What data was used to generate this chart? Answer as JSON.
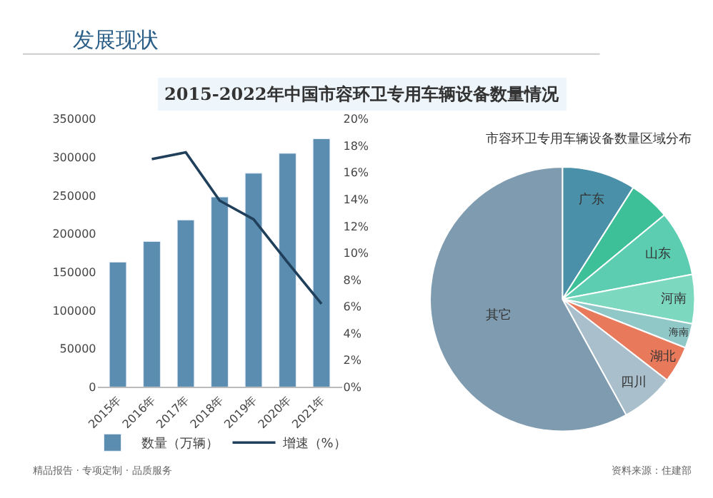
{
  "chart_data": [
    {
      "type": "bar",
      "title": "2015-2022年中国市容环卫专用车辆设备数量情况",
      "annotations": [
        "发展现状",
        "精品报告 · 专项定制 · 品质服务",
        "资料来源：住建部"
      ],
      "categories": [
        "2015年",
        "2016年",
        "2017年",
        "2018年",
        "2019年",
        "2020年",
        "2021年"
      ],
      "series": [
        {
          "name": "数量（万辆）",
          "type": "bar",
          "color": "#5b8db0",
          "values": [
            163000,
            190000,
            218000,
            248000,
            279000,
            305000,
            324000
          ]
        },
        {
          "name": "增速（%）",
          "type": "line",
          "axis": "y2",
          "color": "#1f3f5a",
          "values": [
            null,
            17.0,
            17.5,
            13.9,
            12.5,
            9.3,
            6.2
          ]
        }
      ],
      "ylim": [
        0,
        350000
      ],
      "yticks": [
        0,
        50000,
        100000,
        150000,
        200000,
        250000,
        300000,
        350000
      ],
      "y2lim": [
        0,
        20
      ],
      "y2ticks": [
        {
          "value": 0,
          "label": "0%"
        },
        {
          "value": 2,
          "label": "2%"
        },
        {
          "value": 4,
          "label": "4%"
        },
        {
          "value": 6,
          "label": "6%"
        },
        {
          "value": 8,
          "label": "8%"
        },
        {
          "value": 10,
          "label": "10%"
        },
        {
          "value": 12,
          "label": "12%"
        },
        {
          "value": 14,
          "label": "14%"
        },
        {
          "value": 16,
          "label": "16%"
        },
        {
          "value": 18,
          "label": "18%"
        },
        {
          "value": 20,
          "label": "20%"
        }
      ],
      "legend": "bottom",
      "marker": "none",
      "line_style": "solid"
    },
    {
      "type": "pie",
      "title": "市容环卫专用车辆设备数量区域分布",
      "categories": [
        "广东",
        null,
        "山东",
        "河南",
        "海南",
        "湖北",
        "四川",
        "其它"
      ],
      "values": [
        9,
        5,
        8,
        6,
        3,
        4.5,
        6.5,
        58
      ],
      "colors": [
        "#4a90a8",
        "#3dbf98",
        "#5ccdb0",
        "#7dd8c0",
        "#90c8c8",
        "#e8795a",
        "#a9bfcc",
        "#7f9bb0"
      ]
    }
  ]
}
